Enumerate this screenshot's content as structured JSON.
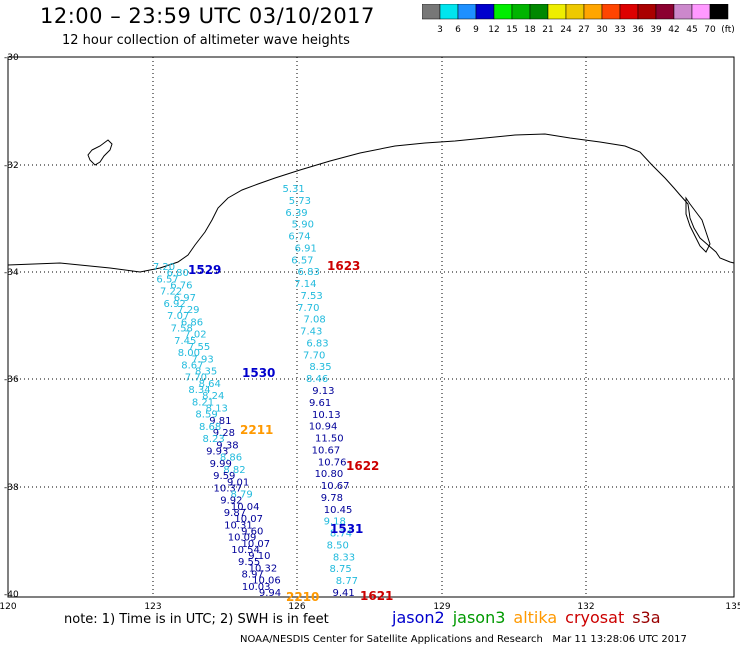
{
  "header": {
    "title": "12:00 – 23:59 UTC 03/10/2017",
    "subtitle": "12 hour collection of altimeter wave heights"
  },
  "scale": {
    "ticks": [
      "3",
      "6",
      "9",
      "12",
      "15",
      "18",
      "21",
      "24",
      "27",
      "30",
      "33",
      "36",
      "39",
      "42",
      "45",
      "70"
    ],
    "unit": "(ft)",
    "colors": [
      "#777777",
      "#00e5ee",
      "#1e90ff",
      "#0000cd",
      "#00ee00",
      "#00b400",
      "#008800",
      "#eeee00",
      "#eec900",
      "#ffa500",
      "#ff4500",
      "#dd0000",
      "#aa0000",
      "#8b0030",
      "#cc88cc",
      "#ff99ff",
      "#000000"
    ]
  },
  "axes": {
    "lat_labels": [
      "-30",
      "-32",
      "-34",
      "-36",
      "-38",
      "-40"
    ],
    "lon_labels": [
      "120",
      "123",
      "126",
      "129",
      "132",
      "135"
    ]
  },
  "colors": {
    "jason2": "#0000cc",
    "jason3": "#009900",
    "altika": "#ff9900",
    "cryosat": "#cc0000",
    "s3a": "#990000",
    "cyan": "#22bbdd",
    "blue": "#1133cc",
    "darkblue": "#000099"
  },
  "tracks": [
    {
      "name": "west-track",
      "points": [
        {
          "v": "7.20",
          "c": "cyan"
        },
        {
          "v": "6.80",
          "c": "cyan"
        },
        {
          "v": "6.57",
          "c": "cyan"
        },
        {
          "v": "6.76",
          "c": "cyan"
        },
        {
          "v": "7.22",
          "c": "cyan"
        },
        {
          "v": "6.97",
          "c": "cyan"
        },
        {
          "v": "6.92",
          "c": "cyan"
        },
        {
          "v": "7.29",
          "c": "cyan"
        },
        {
          "v": "7.07",
          "c": "cyan"
        },
        {
          "v": "6.86",
          "c": "cyan"
        },
        {
          "v": "7.58",
          "c": "cyan"
        },
        {
          "v": "7.02",
          "c": "cyan"
        },
        {
          "v": "7.45",
          "c": "cyan"
        },
        {
          "v": "7.55",
          "c": "cyan"
        },
        {
          "v": "8.00",
          "c": "cyan"
        },
        {
          "v": "7.93",
          "c": "cyan"
        },
        {
          "v": "8.67",
          "c": "cyan"
        },
        {
          "v": "8.35",
          "c": "cyan"
        },
        {
          "v": "7.70",
          "c": "cyan"
        },
        {
          "v": "8.64",
          "c": "cyan"
        },
        {
          "v": "8.34",
          "c": "cyan"
        },
        {
          "v": "8.24",
          "c": "cyan"
        },
        {
          "v": "8.21",
          "c": "cyan"
        },
        {
          "v": "8.13",
          "c": "cyan"
        },
        {
          "v": "8.59",
          "c": "cyan"
        },
        {
          "v": "9.81",
          "c": "darkblue"
        },
        {
          "v": "8.68",
          "c": "cyan"
        },
        {
          "v": "9.28",
          "c": "darkblue"
        },
        {
          "v": "8.23",
          "c": "cyan"
        },
        {
          "v": "9.38",
          "c": "darkblue"
        },
        {
          "v": "9.93",
          "c": "darkblue"
        },
        {
          "v": "8.86",
          "c": "cyan"
        },
        {
          "v": "9.99",
          "c": "darkblue"
        },
        {
          "v": "8.82",
          "c": "cyan"
        },
        {
          "v": "9.59",
          "c": "darkblue"
        },
        {
          "v": "9.01",
          "c": "darkblue"
        },
        {
          "v": "10.37",
          "c": "darkblue"
        },
        {
          "v": "8.79",
          "c": "cyan"
        },
        {
          "v": "9.92",
          "c": "darkblue"
        },
        {
          "v": "10.04",
          "c": "darkblue"
        },
        {
          "v": "9.87",
          "c": "darkblue"
        },
        {
          "v": "10.07",
          "c": "darkblue"
        },
        {
          "v": "10.31",
          "c": "darkblue"
        },
        {
          "v": "9.60",
          "c": "darkblue"
        },
        {
          "v": "10.09",
          "c": "darkblue"
        },
        {
          "v": "10.07",
          "c": "darkblue"
        },
        {
          "v": "10.54",
          "c": "darkblue"
        },
        {
          "v": "9.10",
          "c": "darkblue"
        },
        {
          "v": "9.55",
          "c": "darkblue"
        },
        {
          "v": "10.32",
          "c": "darkblue"
        },
        {
          "v": "8.97",
          "c": "darkblue"
        },
        {
          "v": "10.06",
          "c": "darkblue"
        },
        {
          "v": "10.03",
          "c": "darkblue"
        },
        {
          "v": "9.94",
          "c": "darkblue"
        }
      ]
    },
    {
      "name": "east-track",
      "points": [
        {
          "v": "5.31",
          "c": "cyan"
        },
        {
          "v": "5.73",
          "c": "cyan"
        },
        {
          "v": "6.39",
          "c": "cyan"
        },
        {
          "v": "5.90",
          "c": "cyan"
        },
        {
          "v": "6.74",
          "c": "cyan"
        },
        {
          "v": "6.91",
          "c": "cyan"
        },
        {
          "v": "6.57",
          "c": "cyan"
        },
        {
          "v": "6.83",
          "c": "cyan"
        },
        {
          "v": "7.14",
          "c": "cyan"
        },
        {
          "v": "7.53",
          "c": "cyan"
        },
        {
          "v": "7.70",
          "c": "cyan"
        },
        {
          "v": "7.08",
          "c": "cyan"
        },
        {
          "v": "7.43",
          "c": "cyan"
        },
        {
          "v": "6.83",
          "c": "cyan"
        },
        {
          "v": "7.70",
          "c": "cyan"
        },
        {
          "v": "8.35",
          "c": "cyan"
        },
        {
          "v": "8.46",
          "c": "cyan"
        },
        {
          "v": "9.13",
          "c": "darkblue"
        },
        {
          "v": "9.61",
          "c": "darkblue"
        },
        {
          "v": "10.13",
          "c": "darkblue"
        },
        {
          "v": "10.94",
          "c": "darkblue"
        },
        {
          "v": "11.50",
          "c": "darkblue"
        },
        {
          "v": "10.67",
          "c": "darkblue"
        },
        {
          "v": "10.76",
          "c": "darkblue"
        },
        {
          "v": "10.80",
          "c": "darkblue"
        },
        {
          "v": "10.67",
          "c": "darkblue"
        },
        {
          "v": "9.78",
          "c": "darkblue"
        },
        {
          "v": "10.45",
          "c": "darkblue"
        },
        {
          "v": "9.18",
          "c": "cyan"
        },
        {
          "v": "8.74",
          "c": "cyan"
        },
        {
          "v": "8.50",
          "c": "cyan"
        },
        {
          "v": "8.33",
          "c": "cyan"
        },
        {
          "v": "8.75",
          "c": "cyan"
        },
        {
          "v": "8.77",
          "c": "cyan"
        },
        {
          "v": "9.41",
          "c": "darkblue"
        }
      ]
    }
  ],
  "pass_times": [
    {
      "t": "1529",
      "c": "jason2"
    },
    {
      "t": "1530",
      "c": "jason2"
    },
    {
      "t": "1531",
      "c": "jason2"
    },
    {
      "t": "1623",
      "c": "cryosat"
    },
    {
      "t": "1622",
      "c": "cryosat"
    },
    {
      "t": "1621",
      "c": "cryosat"
    },
    {
      "t": "2211",
      "c": "altika"
    },
    {
      "t": "2210",
      "c": "altika"
    }
  ],
  "footer": {
    "note": "note: 1) Time is in UTC; 2) SWH is in feet",
    "legend": [
      "jason2",
      "jason3",
      "altika",
      "cryosat",
      "s3a"
    ],
    "credit": "NOAA/NESDIS Center for Satellite Applications and Research   Mar 11 13:28:06 UTC 2017"
  }
}
